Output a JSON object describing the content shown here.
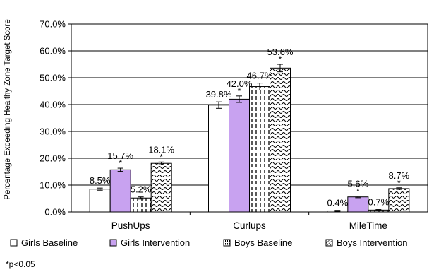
{
  "chart_data": {
    "type": "bar",
    "categories": [
      "PushUps",
      "Curlups",
      "MileTime"
    ],
    "series": [
      {
        "name": "Girls Baseline",
        "values": [
          8.5,
          39.8,
          0.4
        ],
        "labels": [
          "8.5%",
          "39.8%",
          "0.4%"
        ],
        "significant": [
          false,
          false,
          false
        ],
        "error": [
          0.4,
          1.2,
          0.2
        ],
        "pattern": "solid-white"
      },
      {
        "name": "Girls Intervention",
        "values": [
          15.7,
          42.0,
          5.6
        ],
        "labels": [
          "15.7%",
          "42.0%",
          "5.6%"
        ],
        "significant": [
          true,
          true,
          true
        ],
        "error": [
          0.6,
          1.2,
          0.3
        ],
        "pattern": "solid-purple"
      },
      {
        "name": "Boys Baseline",
        "values": [
          5.2,
          46.7,
          0.7
        ],
        "labels": [
          "5.2%",
          "46.7%",
          "0.7%"
        ],
        "significant": [
          false,
          false,
          false
        ],
        "error": [
          0.4,
          1.3,
          0.2
        ],
        "pattern": "vertical-dash"
      },
      {
        "name": "Boys Intervention",
        "values": [
          18.1,
          53.6,
          8.7
        ],
        "labels": [
          "18.1%",
          "53.6%",
          "8.7%"
        ],
        "significant": [
          true,
          true,
          true
        ],
        "error": [
          0.5,
          1.4,
          0.3
        ],
        "pattern": "wave"
      }
    ],
    "yticks": [
      "0.0%",
      "10.0%",
      "20.0%",
      "30.0%",
      "40.0%",
      "50.0%",
      "60.0%",
      "70.0%"
    ],
    "ylim": [
      0,
      70
    ],
    "ylabel": "Percentage Exceeding Healthy Zone Target Score",
    "xlabel": "",
    "title": "",
    "significance_marker": "*",
    "grid": true,
    "legend_position": "bottom"
  },
  "footnote": "*p<0.05",
  "colors": {
    "purple": "#c8a2f0",
    "white": "#ffffff",
    "grid": "#000000"
  }
}
